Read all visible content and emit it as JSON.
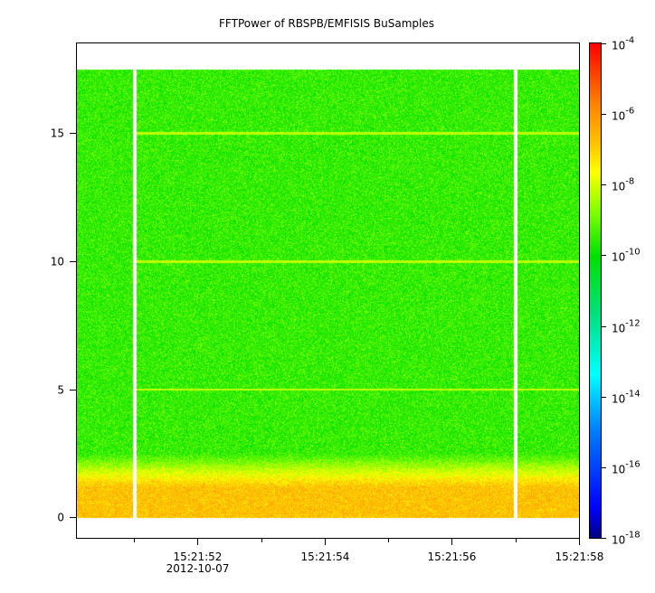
{
  "chart_data": {
    "type": "heatmap",
    "title": "FFTPower of RBSPB/EMFISIS  BuSamples",
    "xlabel": "",
    "ylabel": "",
    "x_axis": {
      "type": "time",
      "range": [
        "15:21:50.1",
        "15:21:58.0"
      ],
      "major_ticks": [
        {
          "value": "15:21:52",
          "label": "15:21:52",
          "sublabel": "2012-10-07"
        },
        {
          "value": "15:21:54",
          "label": "15:21:54",
          "sublabel": ""
        },
        {
          "value": "15:21:56",
          "label": "15:21:56",
          "sublabel": ""
        },
        {
          "value": "15:21:58",
          "label": "15:21:58",
          "sublabel": ""
        }
      ],
      "minor_ticks": [
        "15:21:51",
        "15:21:53",
        "15:21:55",
        "15:21:57"
      ]
    },
    "y_axis": {
      "range": [
        -0.8,
        18.5
      ],
      "major_ticks": [
        {
          "value": 0,
          "label": "0"
        },
        {
          "value": 5,
          "label": "5"
        },
        {
          "value": 10,
          "label": "10"
        },
        {
          "value": 15,
          "label": "15"
        }
      ],
      "data_range": [
        0,
        17.5
      ]
    },
    "colorbar": {
      "scale": "log",
      "range": [
        1e-18,
        0.0001
      ],
      "colormap": "rainbow",
      "ticks": [
        {
          "exponent": -18,
          "base": "10",
          "exp": "-18"
        },
        {
          "exponent": -16,
          "base": "10",
          "exp": "-16"
        },
        {
          "exponent": -14,
          "base": "10",
          "exp": "-14"
        },
        {
          "exponent": -12,
          "base": "10",
          "exp": "-12"
        },
        {
          "exponent": -10,
          "base": "10",
          "exp": "-10"
        },
        {
          "exponent": -8,
          "base": "10",
          "exp": "-8"
        },
        {
          "exponent": -6,
          "base": "10",
          "exp": "-6"
        },
        {
          "exponent": -4,
          "base": "10",
          "exp": "-4"
        }
      ]
    },
    "data_gaps_time": [
      "15:21:51.0",
      "15:21:57.0"
    ],
    "spectral_lines": [
      5,
      10,
      15
    ],
    "background_power_log10": -9.5,
    "low_frequency_enhancement": {
      "frequency_range": [
        0,
        2.5
      ],
      "peak_log10": -6.8
    }
  }
}
